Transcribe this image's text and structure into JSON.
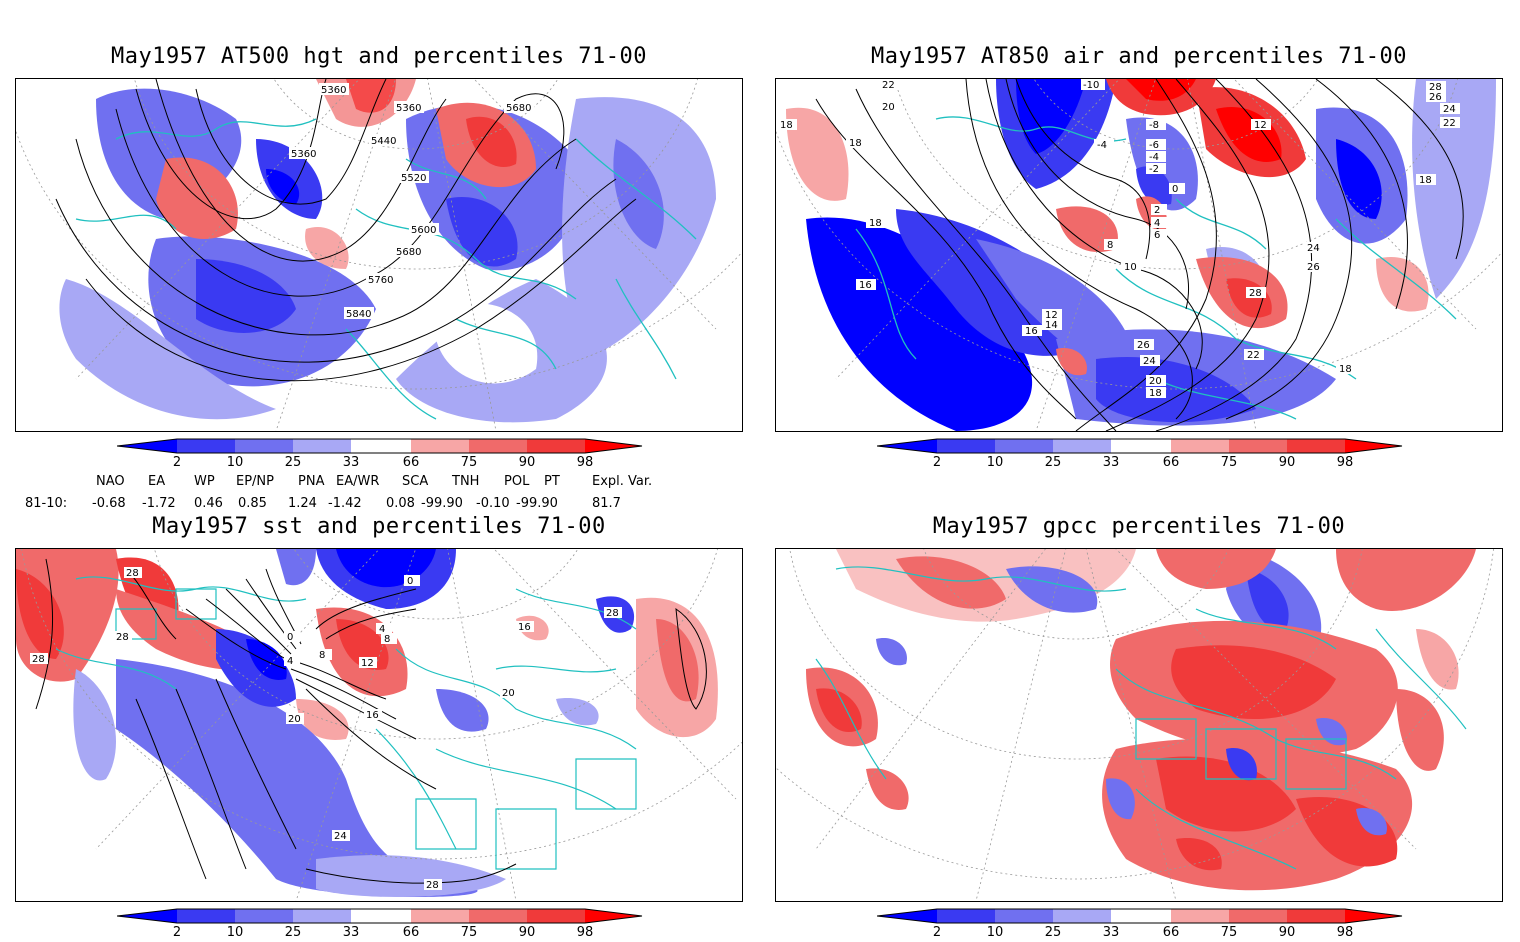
{
  "panels": [
    {
      "title": "May1957 AT500 hgt and percentiles 71-00",
      "contour_labels": [
        "5360",
        "5360",
        "5680",
        "5360",
        "5440",
        "5520",
        "5600",
        "5680",
        "5760",
        "5840"
      ]
    },
    {
      "title": "May1957 AT850 air and percentiles 71-00",
      "contour_labels": [
        "22",
        "20",
        "-10",
        "28",
        "26",
        "24",
        "22",
        "18",
        "18",
        "-8",
        "12",
        "-6",
        "-4",
        "-4",
        "-2",
        "0",
        "2",
        "4",
        "6",
        "18",
        "8",
        "10",
        "24",
        "26",
        "28",
        "16",
        "18",
        "12",
        "14",
        "16",
        "22",
        "26",
        "24",
        "20",
        "18",
        "18"
      ]
    },
    {
      "title": "May1957 sst and percentiles 71-00",
      "contour_labels": [
        "28",
        "28",
        "28",
        "0",
        "0",
        "4",
        "8",
        "12",
        "4",
        "8",
        "16",
        "20",
        "16",
        "20",
        "28",
        "24",
        "28"
      ]
    },
    {
      "title": "May1957 gpcc percentiles 71-00",
      "contour_labels": []
    }
  ],
  "colorbar": {
    "ticks": [
      "2",
      "10",
      "25",
      "33",
      "66",
      "75",
      "90",
      "98"
    ],
    "colors": [
      "#0000ff",
      "#3a3af2",
      "#7070f0",
      "#a8a8f5",
      "#ffffff",
      "#f7a6a6",
      "#f06a6a",
      "#f03a3a",
      "#ff0000"
    ]
  },
  "teleconnections": {
    "headers": [
      "NAO",
      "EA",
      "WP",
      "EP/NP",
      "PNA",
      "EA/WR",
      "SCA",
      "TNH",
      "POL",
      "PT",
      "Expl. Var."
    ],
    "row_label": "81-10:",
    "values": [
      "-0.68",
      "-1.72",
      "0.46",
      "0.85",
      "1.24",
      "-1.42",
      "0.08",
      "-99.90",
      "-0.10",
      "-99.90",
      "81.7"
    ]
  }
}
